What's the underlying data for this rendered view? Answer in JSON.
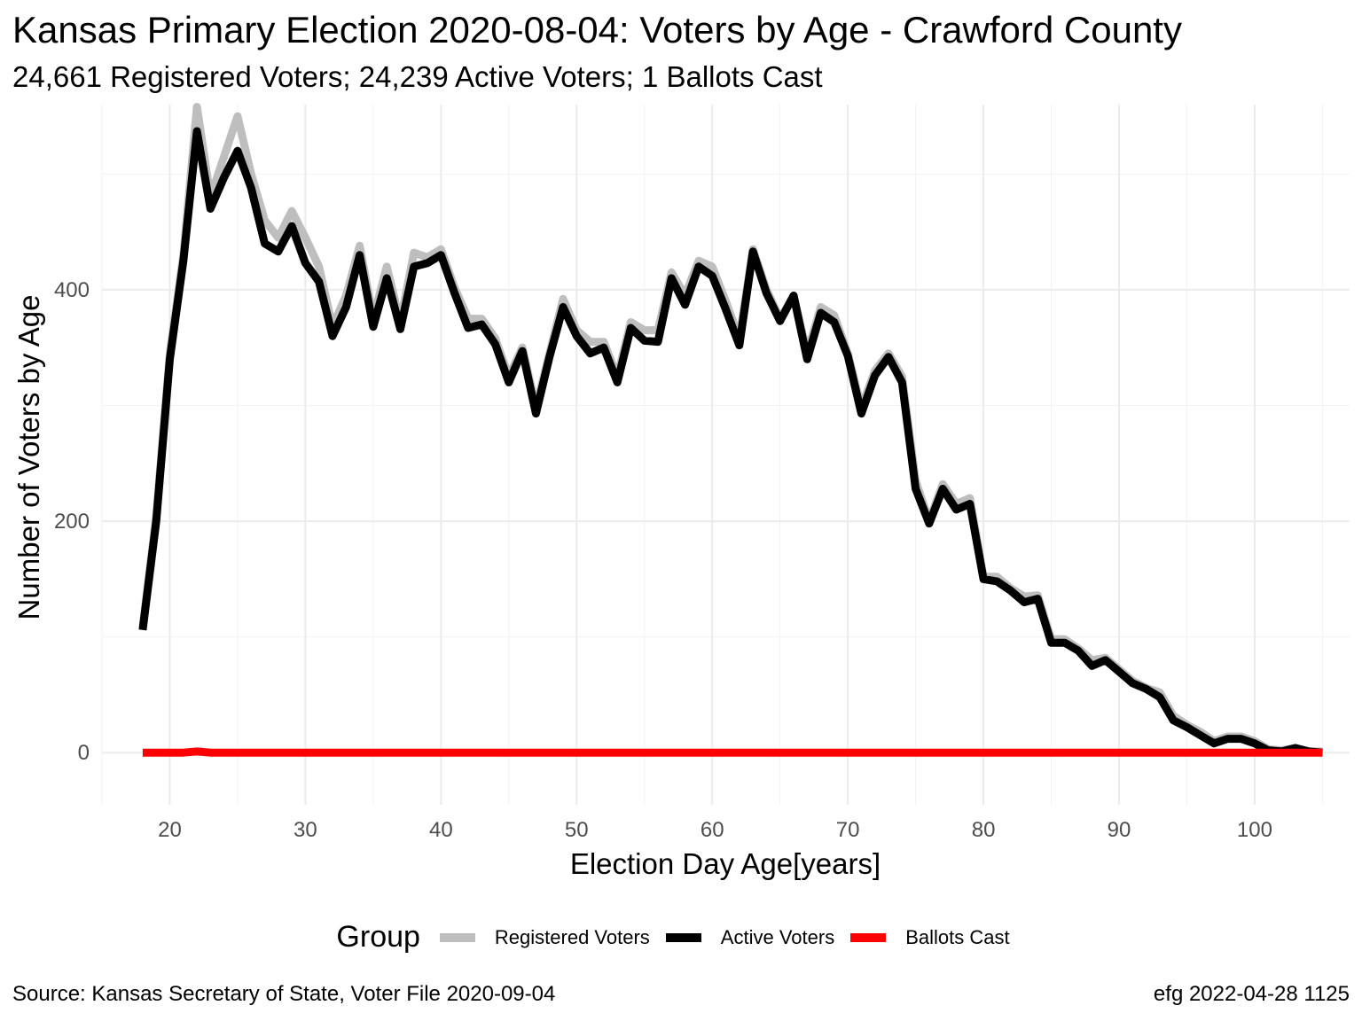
{
  "title": "Kansas Primary Election 2020-08-04:  Voters by Age - Crawford County",
  "subtitle": "24,661 Registered Voters; 24,239 Active Voters; 1 Ballots Cast",
  "caption_left": "Source:  Kansas Secretary of State, Voter File  2020-09-04",
  "caption_right": "efg 2022-04-28 1125",
  "legend": {
    "title": "Group",
    "items": [
      {
        "label": "Registered Voters",
        "color": "#bebebe"
      },
      {
        "label": "Active Voters",
        "color": "#000000"
      },
      {
        "label": "Ballots Cast",
        "color": "#ff0000"
      }
    ]
  },
  "chart_data": {
    "type": "line",
    "xlabel": "Election Day Age[years]",
    "ylabel": "Number of Voters by Age",
    "xlim": [
      15,
      107
    ],
    "ylim": [
      -45,
      560
    ],
    "x_ticks": [
      20,
      30,
      40,
      50,
      60,
      70,
      80,
      90,
      100
    ],
    "y_ticks": [
      0,
      200,
      400
    ],
    "grid": true,
    "legend_position": "bottom",
    "x": [
      18,
      19,
      20,
      21,
      22,
      23,
      24,
      25,
      26,
      27,
      28,
      29,
      30,
      31,
      32,
      33,
      34,
      35,
      36,
      37,
      38,
      39,
      40,
      41,
      42,
      43,
      44,
      45,
      46,
      47,
      48,
      49,
      50,
      51,
      52,
      53,
      54,
      55,
      56,
      57,
      58,
      59,
      60,
      61,
      62,
      63,
      64,
      65,
      66,
      67,
      68,
      69,
      70,
      71,
      72,
      73,
      74,
      75,
      76,
      77,
      78,
      79,
      80,
      81,
      82,
      83,
      84,
      85,
      86,
      87,
      88,
      89,
      90,
      91,
      92,
      93,
      94,
      95,
      96,
      97,
      98,
      99,
      100,
      101,
      102,
      103,
      104,
      105
    ],
    "series": [
      {
        "name": "Registered Voters",
        "color": "#bebebe",
        "values": [
          108,
          205,
          345,
          430,
          558,
          480,
          515,
          550,
          500,
          460,
          445,
          468,
          445,
          420,
          368,
          395,
          438,
          375,
          420,
          372,
          432,
          428,
          435,
          402,
          375,
          375,
          358,
          325,
          350,
          298,
          345,
          392,
          365,
          355,
          355,
          325,
          372,
          365,
          365,
          415,
          395,
          425,
          420,
          390,
          358,
          435,
          400,
          375,
          395,
          345,
          385,
          378,
          345,
          298,
          330,
          345,
          325,
          235,
          200,
          232,
          215,
          220,
          152,
          152,
          142,
          135,
          136,
          98,
          98,
          90,
          80,
          82,
          72,
          62,
          56,
          52,
          32,
          24,
          18,
          10,
          14,
          14,
          10,
          3,
          2,
          4,
          1,
          1
        ]
      },
      {
        "name": "Active Voters",
        "color": "#000000",
        "values": [
          106,
          200,
          340,
          425,
          537,
          470,
          497,
          520,
          488,
          440,
          433,
          455,
          423,
          407,
          360,
          385,
          430,
          368,
          410,
          366,
          420,
          423,
          430,
          397,
          367,
          370,
          353,
          320,
          347,
          293,
          342,
          385,
          360,
          345,
          350,
          320,
          367,
          356,
          355,
          410,
          387,
          420,
          412,
          383,
          352,
          433,
          397,
          373,
          395,
          340,
          380,
          372,
          343,
          293,
          326,
          342,
          320,
          228,
          198,
          228,
          210,
          215,
          150,
          148,
          140,
          130,
          133,
          95,
          95,
          88,
          75,
          80,
          70,
          60,
          55,
          48,
          28,
          22,
          15,
          8,
          12,
          12,
          8,
          2,
          1,
          4,
          1,
          0
        ]
      },
      {
        "name": "Ballots Cast",
        "color": "#ff0000",
        "values": [
          0,
          0,
          0,
          0,
          1,
          0,
          0,
          0,
          0,
          0,
          0,
          0,
          0,
          0,
          0,
          0,
          0,
          0,
          0,
          0,
          0,
          0,
          0,
          0,
          0,
          0,
          0,
          0,
          0,
          0,
          0,
          0,
          0,
          0,
          0,
          0,
          0,
          0,
          0,
          0,
          0,
          0,
          0,
          0,
          0,
          0,
          0,
          0,
          0,
          0,
          0,
          0,
          0,
          0,
          0,
          0,
          0,
          0,
          0,
          0,
          0,
          0,
          0,
          0,
          0,
          0,
          0,
          0,
          0,
          0,
          0,
          0,
          0,
          0,
          0,
          0,
          0,
          0,
          0,
          0,
          0,
          0,
          0,
          0,
          0,
          0,
          0,
          0
        ]
      }
    ]
  }
}
